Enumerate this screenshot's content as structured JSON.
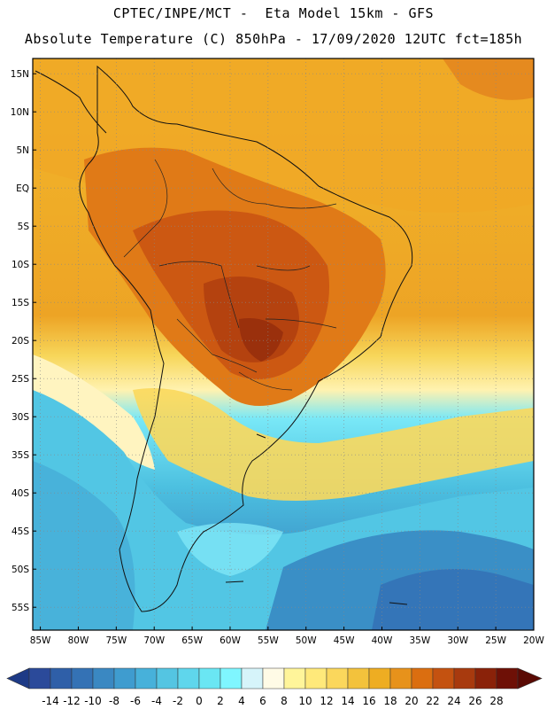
{
  "header": {
    "line1": "CPTEC/INPE/MCT -  Eta Model 15km - GFS",
    "line2": "Absolute Temperature (C) 850hPa - 17/09/2020 12UTC fct=185h"
  },
  "map": {
    "lat_labels": [
      "15N",
      "10N",
      "5N",
      "EQ",
      "5S",
      "10S",
      "15S",
      "20S",
      "25S",
      "30S",
      "35S",
      "40S",
      "45S",
      "50S",
      "55S"
    ],
    "lat_values": [
      15,
      10,
      5,
      0,
      -5,
      -10,
      -15,
      -20,
      -25,
      -30,
      -35,
      -40,
      -45,
      -50,
      -55
    ],
    "lon_labels": [
      "85W",
      "80W",
      "75W",
      "70W",
      "65W",
      "60W",
      "55W",
      "50W",
      "45W",
      "40W",
      "35W",
      "30W",
      "25W",
      "20W"
    ],
    "lon_values": [
      -85,
      -80,
      -75,
      -70,
      -65,
      -60,
      -55,
      -50,
      -45,
      -40,
      -35,
      -30,
      -25,
      -20
    ],
    "lon_range": [
      -86,
      -20
    ],
    "lat_range": [
      -58,
      17
    ]
  },
  "colorbar": {
    "labels": [
      "-14",
      "-12",
      "-10",
      "-8",
      "-6",
      "-4",
      "-2",
      "0",
      "2",
      "4",
      "6",
      "8",
      "10",
      "12",
      "14",
      "16",
      "18",
      "20",
      "22",
      "24",
      "26",
      "28"
    ],
    "colors": [
      "#2b4a9a",
      "#2f5fa8",
      "#3472b5",
      "#3a88c2",
      "#3f9ccf",
      "#47b1da",
      "#54c5e2",
      "#5fd6ec",
      "#6ae6f3",
      "#7ff6ff",
      "#d6f4fa",
      "#fffbe6",
      "#fff59a",
      "#ffe97a",
      "#fbd75c",
      "#f3c23c",
      "#eead22",
      "#e7921b",
      "#db6e10",
      "#c45210",
      "#a83a0e",
      "#8a2209",
      "#6e1006"
    ]
  }
}
